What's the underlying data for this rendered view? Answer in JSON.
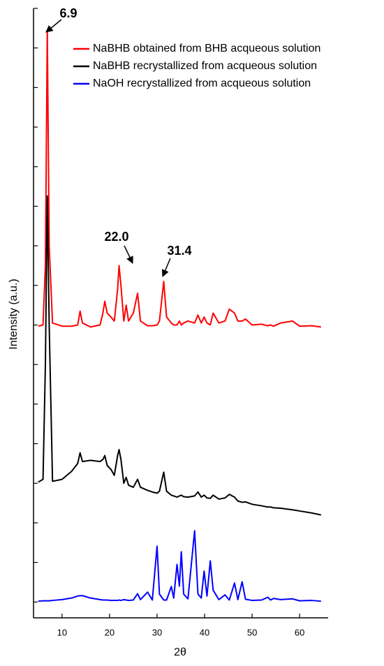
{
  "chart_data": {
    "type": "line",
    "xlabel": "2θ",
    "ylabel": "Intensity (a.u.)",
    "xlim": [
      4,
      66
    ],
    "xticks": [
      10,
      20,
      30,
      40,
      50,
      60
    ],
    "ylim": [
      -0.4,
      15
    ],
    "yticks": [
      0,
      1,
      2,
      3,
      4,
      5,
      6,
      7,
      8,
      9,
      10,
      11,
      12,
      13,
      14,
      15
    ],
    "legend": "upper right",
    "annotations": [
      "6.9",
      "22.0",
      "31.4"
    ],
    "x": [
      5,
      6,
      6.5,
      6.9,
      7.3,
      8,
      10,
      12,
      13.3,
      13.8,
      14.3,
      16,
      18,
      18.6,
      19,
      19.5,
      20.3,
      21,
      21.7,
      22.0,
      22.4,
      23,
      23.5,
      24,
      25,
      25.9,
      26.5,
      28,
      29,
      30,
      30.5,
      31.4,
      32,
      33,
      33.5,
      34.2,
      34.7,
      35.1,
      35.6,
      36.5,
      37.9,
      38.6,
      39.3,
      39.9,
      40.5,
      41.2,
      41.8,
      43,
      44.3,
      45.2,
      46.3,
      47,
      47.9,
      48.6,
      50,
      52,
      53.3,
      53.9,
      54.5,
      56,
      58.5,
      60,
      62.5,
      64.5
    ],
    "series": [
      {
        "name": "NaBHB obtained from BHB acqueous solution",
        "color": "#ff0000",
        "values": [
          6.97,
          7.0,
          8.5,
          14.45,
          9.0,
          7.05,
          6.97,
          6.97,
          7.0,
          7.35,
          7.05,
          6.95,
          7.0,
          7.3,
          7.6,
          7.3,
          7.2,
          7.1,
          7.9,
          8.5,
          8.0,
          7.1,
          7.5,
          7.1,
          7.3,
          7.8,
          7.1,
          6.98,
          6.98,
          7.0,
          7.1,
          8.1,
          7.2,
          7.05,
          7.0,
          7.0,
          7.1,
          7.0,
          7.05,
          7.1,
          7.05,
          7.25,
          7.05,
          7.2,
          7.05,
          7.0,
          7.3,
          7.05,
          7.1,
          7.4,
          7.3,
          7.1,
          7.1,
          7.15,
          7.0,
          7.02,
          6.98,
          7.0,
          6.97,
          7.05,
          7.1,
          6.97,
          6.98,
          6.95
        ]
      },
      {
        "name": "NaBHB recrystallized from acqueous solution",
        "color": "#000000",
        "values": [
          3.03,
          3.1,
          6.0,
          10.26,
          7.0,
          3.05,
          3.1,
          3.3,
          3.5,
          3.77,
          3.55,
          3.58,
          3.55,
          3.6,
          3.7,
          3.45,
          3.35,
          3.2,
          3.7,
          3.85,
          3.6,
          3.0,
          3.15,
          2.95,
          2.9,
          3.1,
          2.9,
          2.82,
          2.78,
          2.75,
          2.8,
          3.28,
          2.8,
          2.7,
          2.68,
          2.65,
          2.68,
          2.7,
          2.66,
          2.65,
          2.68,
          2.78,
          2.65,
          2.7,
          2.63,
          2.62,
          2.7,
          2.6,
          2.63,
          2.72,
          2.65,
          2.55,
          2.52,
          2.53,
          2.47,
          2.43,
          2.4,
          2.4,
          2.38,
          2.37,
          2.33,
          2.3,
          2.25,
          2.2
        ]
      },
      {
        "name": "NaOH recrystallized from acqueous solution",
        "color": "#0000ff",
        "values": [
          0.02,
          0.03,
          0.03,
          0.03,
          0.03,
          0.04,
          0.06,
          0.1,
          0.15,
          0.16,
          0.16,
          0.1,
          0.06,
          0.05,
          0.05,
          0.05,
          0.04,
          0.04,
          0.04,
          0.05,
          0.04,
          0.06,
          0.05,
          0.04,
          0.05,
          0.21,
          0.06,
          0.25,
          0.05,
          1.41,
          0.2,
          0.05,
          0.05,
          0.39,
          0.1,
          0.95,
          0.4,
          1.27,
          0.2,
          0.08,
          1.8,
          0.2,
          0.1,
          0.78,
          0.15,
          1.04,
          0.3,
          0.06,
          0.18,
          0.05,
          0.48,
          0.06,
          0.51,
          0.07,
          0.04,
          0.05,
          0.12,
          0.05,
          0.09,
          0.06,
          0.08,
          0.03,
          0.04,
          0.02
        ]
      }
    ]
  }
}
